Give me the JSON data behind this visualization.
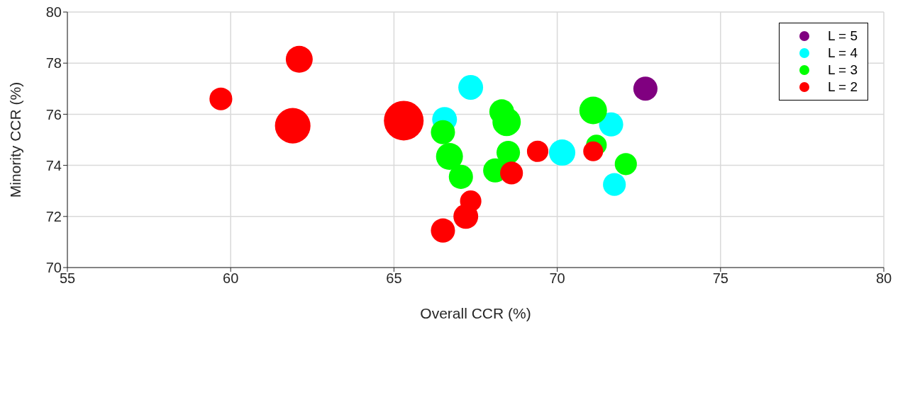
{
  "chart_data": {
    "type": "bubble",
    "xlabel": "Overall CCR (%)",
    "ylabel": "Minority CCR (%)",
    "xlim": [
      55,
      80
    ],
    "xticks": [
      55,
      60,
      65,
      70,
      75,
      80
    ],
    "ylim": [
      70,
      80
    ],
    "yticks": [
      70,
      72,
      74,
      76,
      78,
      80
    ],
    "grid": true,
    "legend": "top right",
    "marker": "circle",
    "series": [
      {
        "name": "L = 5",
        "color": "#800080",
        "x": [
          72.7
        ],
        "values": [
          77.0
        ],
        "sizes": [
          0.37
        ]
      },
      {
        "name": "L = 4",
        "color": "#00ffff",
        "x": [
          67.35,
          66.55,
          70.15,
          71.65,
          71.75
        ],
        "values": [
          77.05,
          75.8,
          74.5,
          75.6,
          73.25
        ],
        "sizes": [
          0.39,
          0.39,
          0.44,
          0.37,
          0.33
        ]
      },
      {
        "name": "L = 3",
        "color": "#00ff00",
        "x": [
          66.5,
          66.7,
          67.05,
          68.1,
          68.5,
          68.3,
          68.45,
          71.1,
          71.2,
          72.1
        ],
        "values": [
          75.3,
          74.35,
          73.55,
          73.8,
          74.5,
          76.1,
          75.7,
          76.15,
          74.8,
          74.05
        ],
        "sizes": [
          0.37,
          0.46,
          0.37,
          0.37,
          0.35,
          0.39,
          0.51,
          0.485,
          0.27,
          0.31
        ]
      },
      {
        "name": "L = 2",
        "color": "#ff0000",
        "x": [
          59.7,
          62.1,
          61.9,
          65.3,
          67.35,
          67.2,
          66.5,
          68.6,
          69.4,
          71.1
        ],
        "values": [
          76.6,
          78.15,
          75.55,
          75.75,
          72.6,
          72.0,
          71.45,
          73.7,
          74.55,
          74.55
        ],
        "sizes": [
          0.33,
          0.46,
          0.8,
          1,
          0.29,
          0.39,
          0.37,
          0.33,
          0.29,
          0.25
        ]
      }
    ]
  }
}
